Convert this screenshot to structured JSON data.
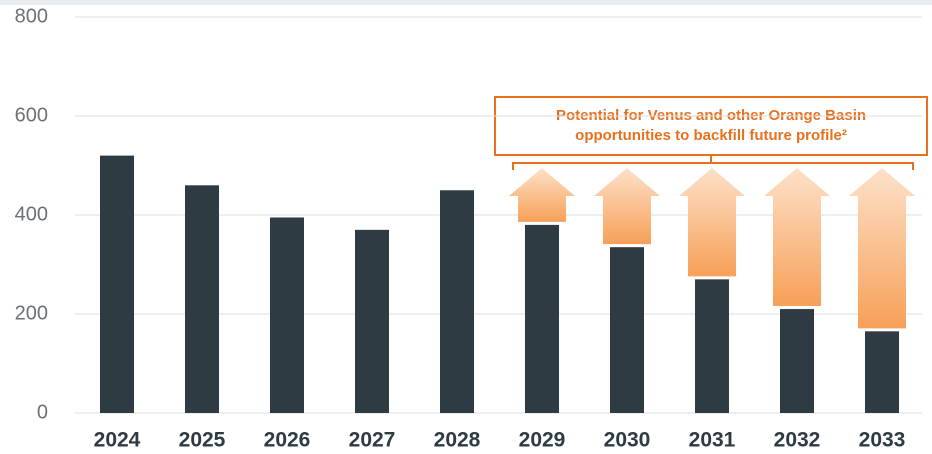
{
  "chart_data": {
    "type": "bar",
    "categories": [
      "2024",
      "2025",
      "2026",
      "2027",
      "2028",
      "2029",
      "2030",
      "2031",
      "2032",
      "2033"
    ],
    "values": [
      520,
      460,
      395,
      370,
      450,
      380,
      335,
      270,
      210,
      165
    ],
    "color": "#2f3b43",
    "ylim": [
      0,
      800
    ],
    "yticks": [
      0,
      200,
      400,
      600,
      800
    ],
    "grid": true,
    "annotation": [
      "Potential for Venus and other Orange Basin",
      "opportunities to backfill future profile²"
    ],
    "annotation_color": "#e8711e"
  }
}
